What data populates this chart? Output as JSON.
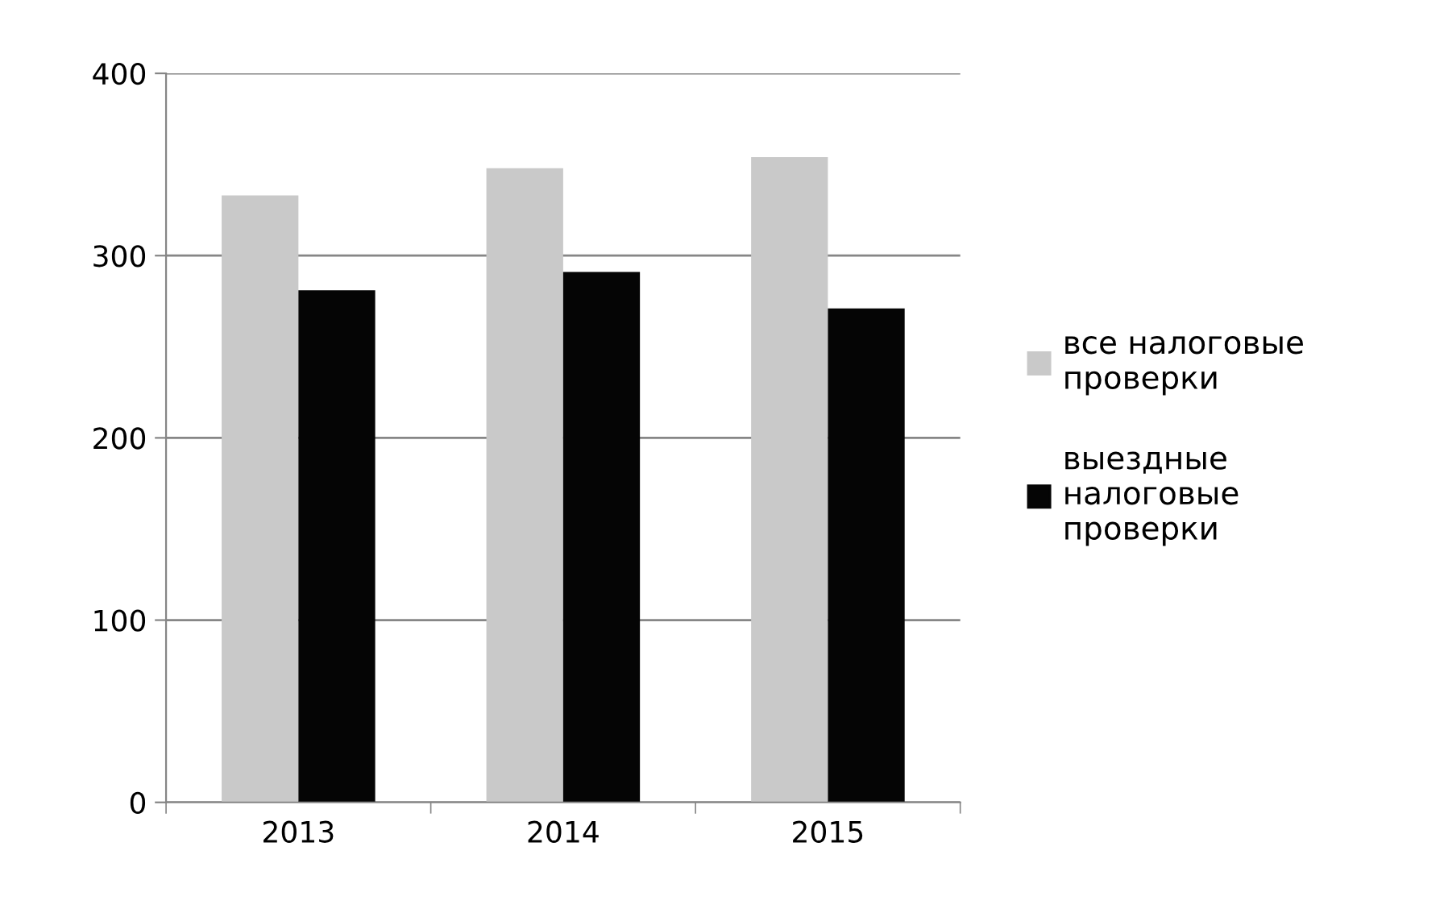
{
  "chart_data": {
    "type": "bar",
    "categories": [
      "2013",
      "2014",
      "2015"
    ],
    "series": [
      {
        "name": "все налоговые проверки",
        "color": "#c9c9c9",
        "values": [
          333,
          348,
          354
        ]
      },
      {
        "name": "выездные налоговые проверки",
        "color": "#050505",
        "values": [
          281,
          291,
          271
        ]
      }
    ],
    "ylim": [
      0,
      400
    ],
    "yticks": [
      0,
      100,
      200,
      300,
      400
    ],
    "grid": "y",
    "legend": "right"
  }
}
